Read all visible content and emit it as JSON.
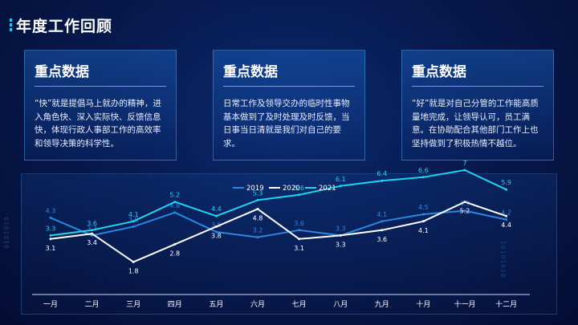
{
  "header": {
    "title": "年度工作回顾"
  },
  "cards": [
    {
      "title": "重点数据",
      "body": "“快”就是提倡马上就办的精神，进入角色快、深入实际快、反馈信息快，体现行政人事部工作的高效率和领导决策的科学性。"
    },
    {
      "title": "重点数据",
      "body": "日常工作及领导交办的临时性事物基本做到了及时处理及时反馈，当日事当日清就是我们对自己的要求。"
    },
    {
      "title": "重点数据",
      "body": "“好”就是对自己分管的工作能高质量地完成，让领导认可，员工满意。在协助配合其他部门工作上也坚持做到了积极热情不越位。"
    }
  ],
  "decor": {
    "binary_left": "0101010",
    "binary_right": "10101010"
  },
  "chart_data": {
    "type": "line",
    "categories": [
      "一月",
      "二月",
      "三月",
      "四月",
      "五月",
      "六月",
      "七月",
      "八月",
      "九月",
      "十月",
      "十一月",
      "十二月"
    ],
    "series": [
      {
        "name": "2019",
        "color": "#2b86e0",
        "values": [
          4.3,
          3.3,
          3.8,
          4.6,
          3.5,
          3.2,
          3.6,
          3.3,
          4.1,
          4.5,
          4.7,
          4.2
        ]
      },
      {
        "name": "2020",
        "color": "#ffffff",
        "values": [
          3.1,
          3.4,
          1.8,
          2.8,
          3.8,
          4.8,
          3.1,
          3.3,
          3.6,
          4.1,
          5.2,
          4.4
        ]
      },
      {
        "name": "2021",
        "color": "#20d3f2",
        "values": [
          3.3,
          3.6,
          4.1,
          5.2,
          4.4,
          5.3,
          5.6,
          6.1,
          6.4,
          6.6,
          7,
          5.9
        ]
      }
    ],
    "ylim": [
      0,
      8
    ],
    "grid": false,
    "legend": "top-center"
  }
}
